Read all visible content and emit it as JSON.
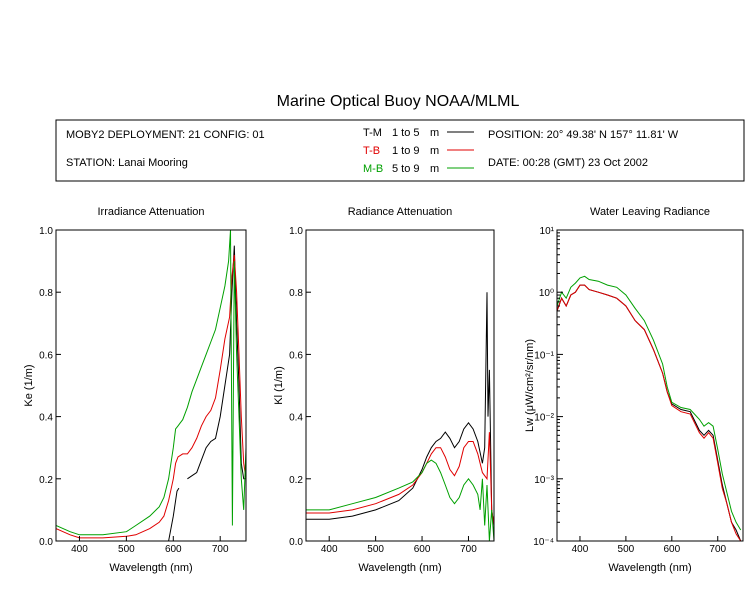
{
  "title": "Marine Optical Buoy NOAA/MLML",
  "info": {
    "deployment": "MOBY2 DEPLOYMENT: 21 CONFIG: 01",
    "station": "STATION: Lanai Mooring",
    "position": "POSITION: 20° 49.38' N   157° 11.81' W",
    "date": "DATE: 00:28 (GMT) 23 Oct 2002"
  },
  "legend": [
    {
      "code": "T-M",
      "range": "1 to 5",
      "unit": "m",
      "color": "#000000"
    },
    {
      "code": "T-B",
      "range": "1 to 9",
      "unit": "m",
      "color": "#e00000"
    },
    {
      "code": "M-B",
      "range": "5 to 9",
      "unit": "m",
      "color": "#00a000"
    }
  ],
  "chart_data": [
    {
      "type": "line",
      "title": "Irradiance Attenuation",
      "xlabel": "Wavelength (nm)",
      "ylabel": "Ke  (1/m)",
      "xlim": [
        350,
        755
      ],
      "ylim": [
        0,
        1
      ],
      "xticks": [
        400,
        500,
        600,
        700
      ],
      "yticks": [
        0,
        0.2,
        0.4,
        0.6,
        0.8,
        1.0
      ],
      "ytick_labels": [
        "0.0",
        "0.2",
        "0.4",
        "0.6",
        "0.8",
        "1.0"
      ],
      "series": [
        {
          "name": "T-M",
          "color": "#000000",
          "x": [
            590,
            600,
            608,
            612,
            620,
            630,
            640,
            650,
            660,
            670,
            680,
            690,
            700,
            710,
            720,
            725,
            730,
            735,
            740,
            745,
            750,
            755
          ],
          "y": [
            0.0,
            0.08,
            0.16,
            0.17,
            null,
            0.2,
            0.21,
            0.22,
            0.26,
            0.3,
            0.32,
            0.33,
            0.4,
            0.5,
            0.6,
            0.8,
            0.95,
            0.7,
            0.5,
            0.25,
            0.2,
            0.2
          ]
        },
        {
          "name": "T-B",
          "color": "#e00000",
          "x": [
            350,
            380,
            400,
            450,
            500,
            520,
            550,
            570,
            580,
            590,
            600,
            605,
            610,
            620,
            630,
            640,
            650,
            660,
            670,
            680,
            690,
            700,
            710,
            720,
            725,
            730,
            735,
            740,
            745,
            750,
            755
          ],
          "y": [
            0.04,
            0.02,
            0.01,
            0.01,
            0.015,
            0.02,
            0.04,
            0.06,
            0.08,
            0.13,
            0.2,
            0.25,
            0.27,
            0.28,
            0.28,
            0.3,
            0.33,
            0.37,
            0.4,
            0.42,
            0.46,
            0.55,
            0.65,
            0.72,
            0.85,
            0.92,
            0.8,
            0.6,
            0.4,
            0.25,
            0.2
          ]
        },
        {
          "name": "M-B",
          "color": "#00a000",
          "x": [
            350,
            380,
            400,
            450,
            500,
            520,
            550,
            570,
            580,
            590,
            600,
            605,
            610,
            615,
            620,
            630,
            640,
            650,
            660,
            670,
            680,
            690,
            700,
            710,
            718,
            722,
            726,
            730,
            735,
            740,
            745,
            750,
            755
          ],
          "y": [
            0.05,
            0.03,
            0.02,
            0.02,
            0.03,
            0.05,
            0.08,
            0.11,
            0.14,
            0.2,
            0.3,
            0.36,
            0.37,
            0.38,
            0.39,
            0.43,
            0.48,
            0.52,
            0.56,
            0.6,
            0.64,
            0.68,
            0.75,
            0.82,
            0.9,
            1.0,
            0.05,
            0.9,
            0.6,
            0.4,
            0.2,
            0.1,
            0.3
          ]
        }
      ]
    },
    {
      "type": "line",
      "title": "Radiance Attenuation",
      "xlabel": "Wavelength (nm)",
      "ylabel": "Kl  (1/m)",
      "xlim": [
        350,
        755
      ],
      "ylim": [
        0,
        1
      ],
      "xticks": [
        400,
        500,
        600,
        700
      ],
      "yticks": [
        0,
        0.2,
        0.4,
        0.6,
        0.8,
        1.0
      ],
      "ytick_labels": [
        "0.0",
        "0.2",
        "0.4",
        "0.6",
        "0.8",
        "1.0"
      ],
      "series": [
        {
          "name": "T-M",
          "color": "#000000",
          "x": [
            350,
            400,
            450,
            500,
            550,
            580,
            600,
            610,
            620,
            630,
            640,
            650,
            660,
            670,
            680,
            690,
            700,
            710,
            720,
            730,
            735,
            740,
            742,
            745,
            750,
            755
          ],
          "y": [
            0.07,
            0.07,
            0.08,
            0.1,
            0.13,
            0.17,
            0.23,
            0.27,
            0.3,
            0.32,
            0.33,
            0.35,
            0.33,
            0.3,
            0.32,
            0.36,
            0.38,
            0.36,
            0.32,
            0.25,
            0.3,
            0.8,
            0.4,
            0.55,
            0.1,
            0.05
          ]
        },
        {
          "name": "T-B",
          "color": "#e00000",
          "x": [
            350,
            400,
            450,
            500,
            550,
            580,
            600,
            610,
            620,
            630,
            640,
            650,
            660,
            670,
            680,
            690,
            700,
            710,
            720,
            730,
            740,
            745,
            750,
            755
          ],
          "y": [
            0.09,
            0.09,
            0.1,
            0.12,
            0.15,
            0.18,
            0.22,
            0.25,
            0.28,
            0.3,
            0.3,
            0.27,
            0.23,
            0.21,
            0.24,
            0.3,
            0.32,
            0.32,
            0.28,
            0.22,
            0.2,
            0.35,
            0.1,
            0.05
          ]
        },
        {
          "name": "M-B",
          "color": "#00a000",
          "x": [
            350,
            400,
            450,
            500,
            550,
            580,
            600,
            610,
            620,
            630,
            640,
            650,
            660,
            670,
            680,
            690,
            700,
            710,
            720,
            725,
            730,
            735,
            740,
            745,
            750,
            755
          ],
          "y": [
            0.1,
            0.1,
            0.12,
            0.14,
            0.17,
            0.19,
            0.22,
            0.25,
            0.26,
            0.25,
            0.22,
            0.18,
            0.14,
            0.12,
            0.14,
            0.18,
            0.2,
            0.18,
            0.15,
            0.1,
            0.2,
            0.05,
            0.18,
            0.0,
            0.1,
            0.0
          ]
        }
      ]
    },
    {
      "type": "line",
      "title": "Water Leaving Radiance",
      "xlabel": "Wavelength (nm)",
      "ylabel": "Lw  (μW/cm²/sr/nm)",
      "yscale": "log",
      "xlim": [
        350,
        755
      ],
      "ylim": [
        0.0001,
        10
      ],
      "xticks": [
        400,
        500,
        600,
        700
      ],
      "ytick_labels": [
        "10⁻⁴",
        "10⁻³",
        "10⁻²",
        "10⁻¹",
        "10⁰",
        "10¹"
      ],
      "series": [
        {
          "name": "T-M",
          "color": "#000000",
          "x": [
            350,
            360,
            370,
            380,
            390,
            400,
            410,
            420,
            440,
            460,
            480,
            500,
            520,
            540,
            560,
            580,
            590,
            600,
            620,
            640,
            660,
            670,
            680,
            690,
            700,
            710,
            720,
            730,
            740,
            750
          ],
          "y": [
            0.5,
            0.8,
            0.6,
            0.9,
            1.0,
            1.3,
            1.3,
            1.1,
            1.0,
            0.9,
            0.8,
            0.6,
            0.35,
            0.25,
            0.12,
            0.05,
            0.025,
            0.016,
            0.013,
            0.012,
            0.006,
            0.005,
            0.006,
            0.005,
            0.002,
            0.0008,
            0.0004,
            0.0002,
            0.00015,
            0.0001
          ]
        },
        {
          "name": "T-B",
          "color": "#e00000",
          "x": [
            350,
            360,
            370,
            380,
            390,
            400,
            410,
            420,
            440,
            460,
            480,
            500,
            520,
            540,
            560,
            580,
            590,
            600,
            620,
            640,
            660,
            670,
            680,
            690,
            700,
            710,
            720,
            730,
            740,
            750
          ],
          "y": [
            0.5,
            0.8,
            0.6,
            0.9,
            1.0,
            1.3,
            1.3,
            1.1,
            1.0,
            0.9,
            0.8,
            0.6,
            0.35,
            0.25,
            0.12,
            0.05,
            0.025,
            0.015,
            0.012,
            0.011,
            0.0055,
            0.0045,
            0.0055,
            0.0045,
            0.0018,
            0.0007,
            0.0004,
            0.0002,
            0.00013,
            0.0001
          ]
        },
        {
          "name": "M-B",
          "color": "#00a000",
          "x": [
            350,
            360,
            370,
            380,
            390,
            400,
            410,
            420,
            440,
            460,
            480,
            500,
            520,
            540,
            560,
            580,
            590,
            600,
            620,
            640,
            660,
            670,
            680,
            690,
            700,
            710,
            720,
            730,
            740,
            750
          ],
          "y": [
            0.6,
            1.0,
            0.8,
            1.2,
            1.4,
            1.7,
            1.8,
            1.6,
            1.5,
            1.3,
            1.2,
            0.9,
            0.55,
            0.35,
            0.17,
            0.07,
            0.03,
            0.017,
            0.014,
            0.013,
            0.009,
            0.007,
            0.008,
            0.007,
            0.003,
            0.0012,
            0.0006,
            0.0003,
            0.0002,
            0.00015
          ]
        }
      ]
    }
  ]
}
